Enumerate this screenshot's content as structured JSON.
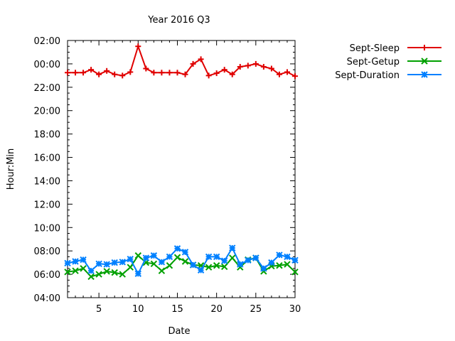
{
  "chart_data": {
    "type": "line",
    "title": "Year 2016 Q3",
    "xlabel": "Date",
    "ylabel": "Hour:Min",
    "xlim": [
      1,
      30
    ],
    "ylim": [
      4,
      26
    ],
    "x_ticks": [
      5,
      10,
      15,
      20,
      25,
      30
    ],
    "y_ticks": [
      4,
      6,
      8,
      10,
      12,
      14,
      16,
      18,
      20,
      22,
      24,
      26
    ],
    "y_tick_labels": [
      "04:00",
      "06:00",
      "08:00",
      "10:00",
      "12:00",
      "14:00",
      "16:00",
      "18:00",
      "20:00",
      "22:00",
      "00:00",
      "02:00"
    ],
    "legend_position": "outside-right",
    "x": [
      1,
      2,
      3,
      4,
      5,
      6,
      7,
      8,
      9,
      10,
      11,
      12,
      13,
      14,
      15,
      16,
      17,
      18,
      19,
      20,
      21,
      22,
      23,
      24,
      25,
      26,
      27,
      28,
      29,
      30
    ],
    "series": [
      {
        "name": "Sept-Sleep",
        "color": "#e00000",
        "marker": "plus",
        "values": [
          23.25,
          23.25,
          23.25,
          23.5,
          23.1,
          23.4,
          23.1,
          23.0,
          23.3,
          25.5,
          23.6,
          23.25,
          23.25,
          23.25,
          23.25,
          23.1,
          24.0,
          24.4,
          23.0,
          23.2,
          23.5,
          23.1,
          23.75,
          23.85,
          24.0,
          23.75,
          23.6,
          23.1,
          23.3,
          22.95
        ]
      },
      {
        "name": "Sept-Getup",
        "color": "#00a000",
        "marker": "x",
        "values": [
          6.2,
          6.3,
          6.5,
          5.8,
          6.0,
          6.25,
          6.15,
          6.0,
          6.6,
          7.6,
          7.0,
          6.9,
          6.3,
          6.75,
          7.45,
          7.1,
          6.8,
          6.75,
          6.6,
          6.75,
          6.65,
          7.4,
          6.6,
          7.25,
          7.4,
          6.25,
          6.7,
          6.75,
          6.85,
          6.2
        ]
      },
      {
        "name": "Sept-Duration",
        "color": "#0080ff",
        "marker": "star",
        "values": [
          6.95,
          7.1,
          7.25,
          6.3,
          6.9,
          6.85,
          7.0,
          7.05,
          7.3,
          6.05,
          7.4,
          7.6,
          7.05,
          7.5,
          8.2,
          7.9,
          6.8,
          6.35,
          7.5,
          7.5,
          7.15,
          8.25,
          6.85,
          7.2,
          7.4,
          6.5,
          7.0,
          7.65,
          7.5,
          7.2
        ]
      }
    ]
  }
}
